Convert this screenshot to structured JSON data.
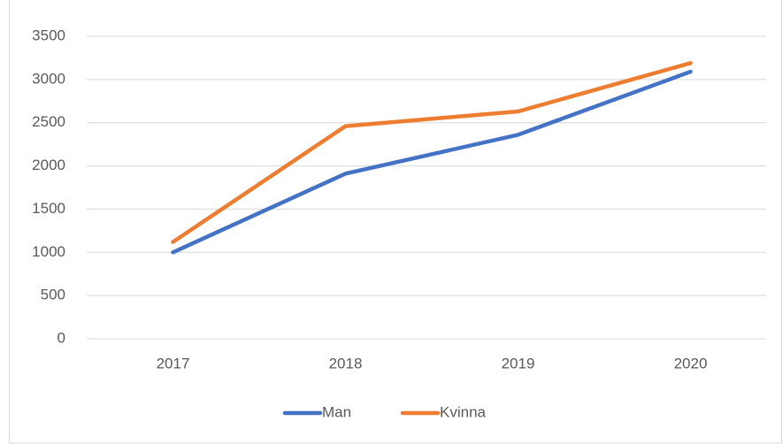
{
  "chart_data": {
    "type": "line",
    "categories": [
      "2017",
      "2018",
      "2019",
      "2020"
    ],
    "series": [
      {
        "name": "Man",
        "color": "#4472c4",
        "values": [
          1000,
          1910,
          2360,
          3090
        ]
      },
      {
        "name": "Kvinna",
        "color": "#ed7d31",
        "values": [
          1120,
          2460,
          2630,
          3190
        ]
      }
    ],
    "ylim": [
      0,
      3500
    ],
    "yticks": [
      0,
      500,
      1000,
      1500,
      2000,
      2500,
      3000,
      3500
    ],
    "grid": true,
    "legend": "bottom"
  }
}
